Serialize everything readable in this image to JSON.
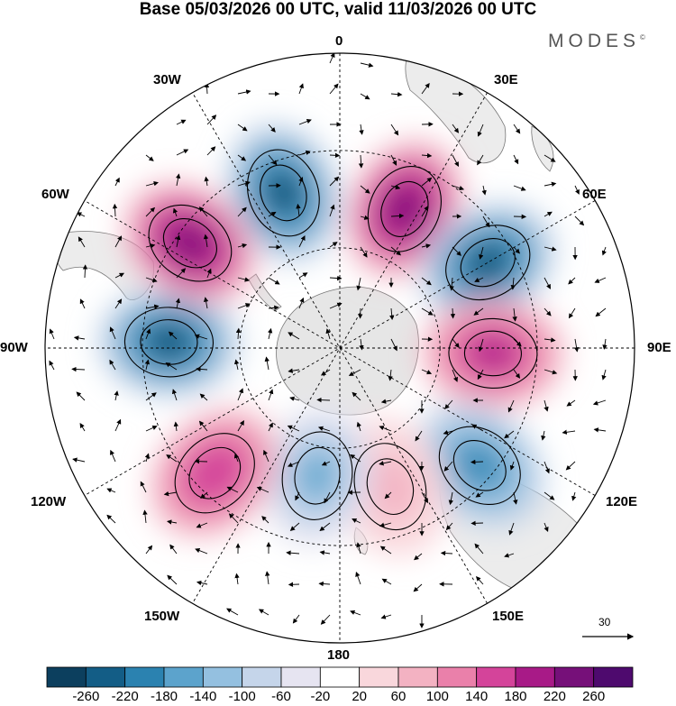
{
  "title": "Base 05/03/2026 00 UTC, valid 11/03/2026 00 UTC",
  "brand": "MODES",
  "brand_mark": "©",
  "map": {
    "projection": "south-polar-stereographic",
    "longitude_labels": [
      {
        "text": "0",
        "lon": 0
      },
      {
        "text": "30E",
        "lon": 30
      },
      {
        "text": "60E",
        "lon": 60
      },
      {
        "text": "90E",
        "lon": 90
      },
      {
        "text": "120E",
        "lon": 120
      },
      {
        "text": "150E",
        "lon": 150
      },
      {
        "text": "180",
        "lon": 180
      },
      {
        "text": "150W",
        "lon": -150
      },
      {
        "text": "120W",
        "lon": -120
      },
      {
        "text": "90W",
        "lon": -90
      },
      {
        "text": "60W",
        "lon": -60
      },
      {
        "text": "30W",
        "lon": -30
      }
    ],
    "latitude_circles": [
      -30,
      -60
    ],
    "wind_reference_value": "30",
    "anomaly_centers": [
      {
        "name": "negative-center-1",
        "sign": "negative",
        "value": -260,
        "lon": -20,
        "lat_frac": 0.56
      },
      {
        "name": "positive-center-1",
        "sign": "positive",
        "value": 260,
        "lon": 25,
        "lat_frac": 0.52
      },
      {
        "name": "negative-center-2",
        "sign": "negative",
        "value": -260,
        "lon": 60,
        "lat_frac": 0.58
      },
      {
        "name": "positive-center-2",
        "sign": "positive",
        "value": 220,
        "lon": 92,
        "lat_frac": 0.52
      },
      {
        "name": "negative-center-3",
        "sign": "negative",
        "value": -180,
        "lon": 130,
        "lat_frac": 0.62
      },
      {
        "name": "positive-center-3",
        "sign": "positive",
        "value": 100,
        "lon": 160,
        "lat_frac": 0.5
      },
      {
        "name": "negative-center-4",
        "sign": "negative",
        "value": -140,
        "lon": -170,
        "lat_frac": 0.44
      },
      {
        "name": "positive-center-4",
        "sign": "positive",
        "value": 180,
        "lon": -135,
        "lat_frac": 0.6
      },
      {
        "name": "negative-center-5",
        "sign": "negative",
        "value": -260,
        "lon": -88,
        "lat_frac": 0.58
      },
      {
        "name": "positive-center-5",
        "sign": "positive",
        "value": 260,
        "lon": -55,
        "lat_frac": 0.62
      }
    ]
  },
  "colorbar": {
    "labels": [
      "-260",
      "-220",
      "-180",
      "-140",
      "-100",
      "-60",
      "-20",
      "20",
      "60",
      "100",
      "140",
      "180",
      "220",
      "260"
    ],
    "colors": [
      "#0c3f5e",
      "#135d86",
      "#2b82b0",
      "#5ca3cc",
      "#94c0e0",
      "#c5d5ea",
      "#e6e4f1",
      "#ffffff",
      "#f9d7dc",
      "#f3b2c2",
      "#ea80aa",
      "#d4449a",
      "#a81a87",
      "#761079",
      "#4e0a6e"
    ]
  }
}
